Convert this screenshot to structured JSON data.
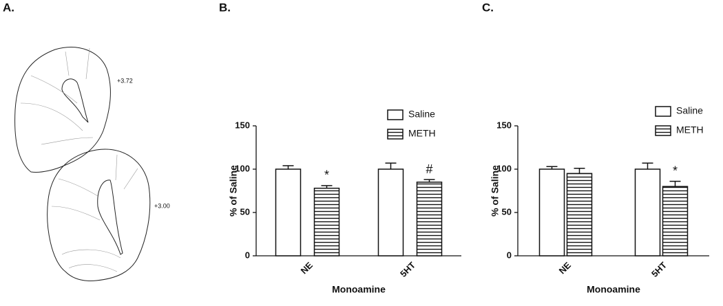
{
  "panel_a": {
    "label": "A.",
    "annotations": [
      "+3.72",
      "+3.00"
    ]
  },
  "chart_data": [
    {
      "type": "bar",
      "panel_label": "B.",
      "xlabel": "Monoamine",
      "ylabel": "% of Saline",
      "categories": [
        "NE",
        "5HT"
      ],
      "ylim": [
        0,
        150
      ],
      "yticks": [
        0,
        50,
        100,
        150
      ],
      "series": [
        {
          "name": "Saline",
          "color": "#ffffff",
          "hatch": false,
          "values": [
            100,
            100
          ],
          "errors": [
            4,
            7
          ],
          "markers": [
            null,
            null
          ]
        },
        {
          "name": "METH",
          "color": "#ffffff",
          "hatch": true,
          "values": [
            78,
            85
          ],
          "errors": [
            3,
            3
          ],
          "markers": [
            "*",
            "#"
          ]
        }
      ]
    },
    {
      "type": "bar",
      "panel_label": "C.",
      "xlabel": "Monoamine",
      "ylabel": "% of Saline",
      "categories": [
        "NE",
        "5HT"
      ],
      "ylim": [
        0,
        150
      ],
      "yticks": [
        0,
        50,
        100,
        150
      ],
      "series": [
        {
          "name": "Saline",
          "color": "#ffffff",
          "hatch": false,
          "values": [
            100,
            100
          ],
          "errors": [
            3,
            7
          ],
          "markers": [
            null,
            null
          ]
        },
        {
          "name": "METH",
          "color": "#ffffff",
          "hatch": true,
          "values": [
            95,
            80
          ],
          "errors": [
            6,
            6
          ],
          "markers": [
            null,
            "*"
          ]
        }
      ]
    }
  ]
}
